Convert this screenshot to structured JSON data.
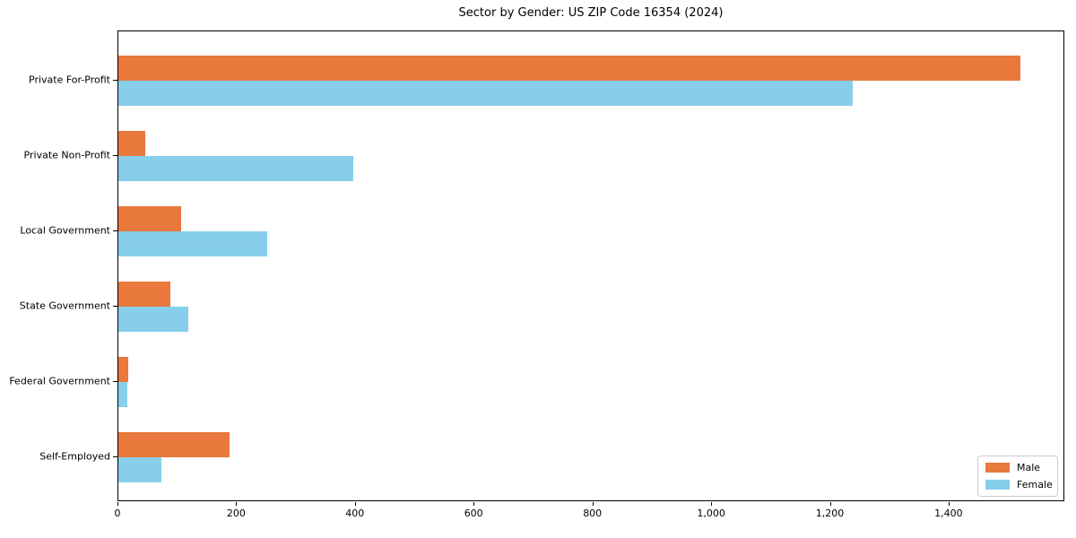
{
  "chart_data": {
    "type": "bar",
    "orientation": "horizontal",
    "title": "Sector by Gender: US ZIP Code 16354 (2024)",
    "categories": [
      "Private For-Profit",
      "Private Non-Profit",
      "Local Government",
      "State Government",
      "Federal Government",
      "Self-Employed"
    ],
    "series": [
      {
        "name": "Male",
        "color": "#e8783c",
        "values": [
          1520,
          45,
          105,
          88,
          16,
          187
        ]
      },
      {
        "name": "Female",
        "color": "#87ceeb",
        "values": [
          1237,
          395,
          250,
          118,
          15,
          72
        ]
      }
    ],
    "xlim": [
      0,
      1595
    ],
    "xticks": [
      0,
      200,
      400,
      600,
      800,
      1000,
      1200,
      1400
    ],
    "xtick_labels": [
      "0",
      "200",
      "400",
      "600",
      "800",
      "1,000",
      "1,200",
      "1,400"
    ],
    "xlabel": "",
    "ylabel": "",
    "legend_position": "lower right",
    "grid": false
  }
}
